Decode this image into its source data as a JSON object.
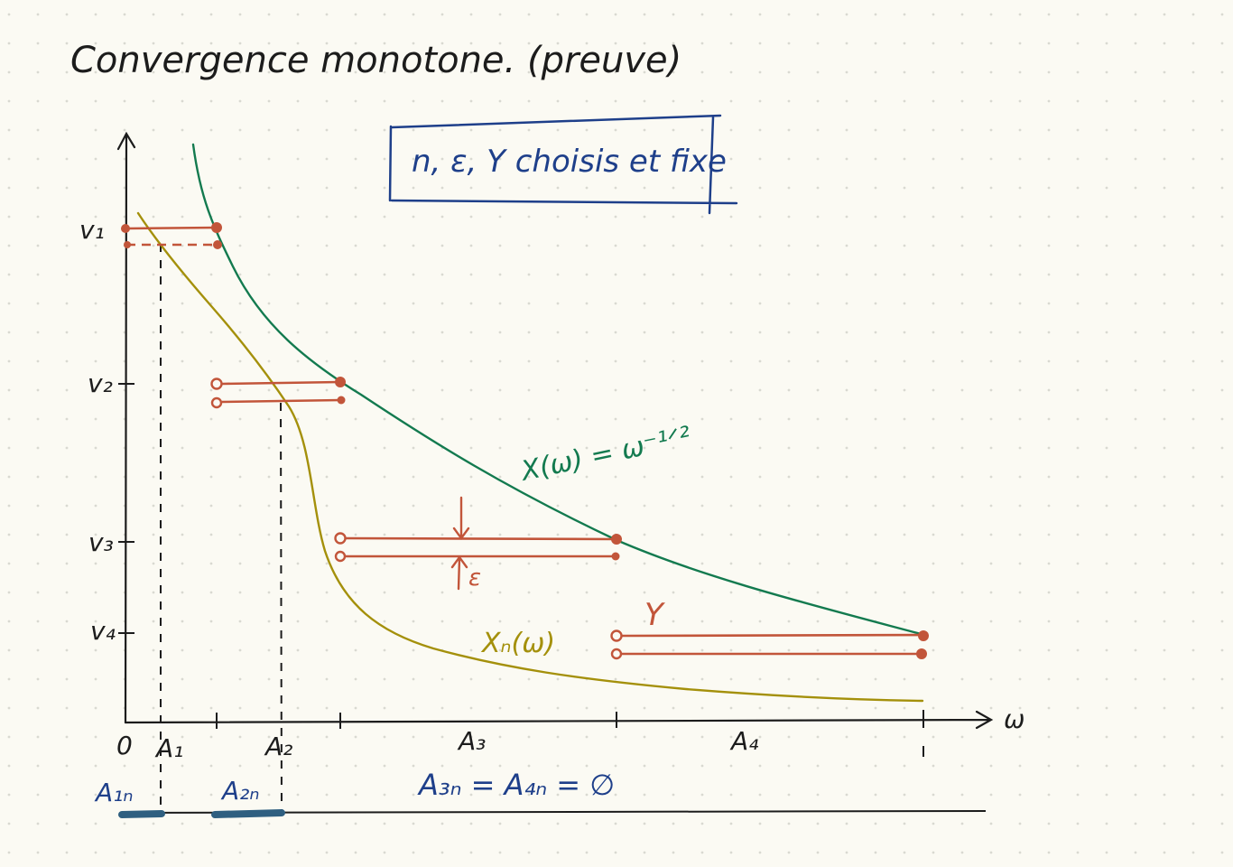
{
  "title": "Convergence monotone. (preuve)",
  "note_box": "n, ε, Y choisis et fixe",
  "axes": {
    "x_label": "ω",
    "origin": "0",
    "y_ticks": [
      "v₁",
      "v₂",
      "v₃",
      "v₄"
    ],
    "x_ticks": [
      "A₁",
      "A₂",
      "A₃",
      "A₄"
    ]
  },
  "curves": {
    "X": "X(ω) = ω⁻¹ᐟ²",
    "Xn": "Xₙ(ω)"
  },
  "annotations": {
    "epsilon": "ε",
    "Y": "Y",
    "A_empty": "A₃ₙ = A₄ₙ = ∅",
    "A1n": "A₁ₙ",
    "A2n": "A₂ₙ"
  },
  "colors": {
    "ink": "#1c1c1c",
    "blue": "#1e3f8a",
    "green": "#137a4f",
    "yellow": "#a4900b",
    "orange": "#c2553a",
    "teal": "#2f5f80",
    "dots": "#d9d9d1"
  }
}
